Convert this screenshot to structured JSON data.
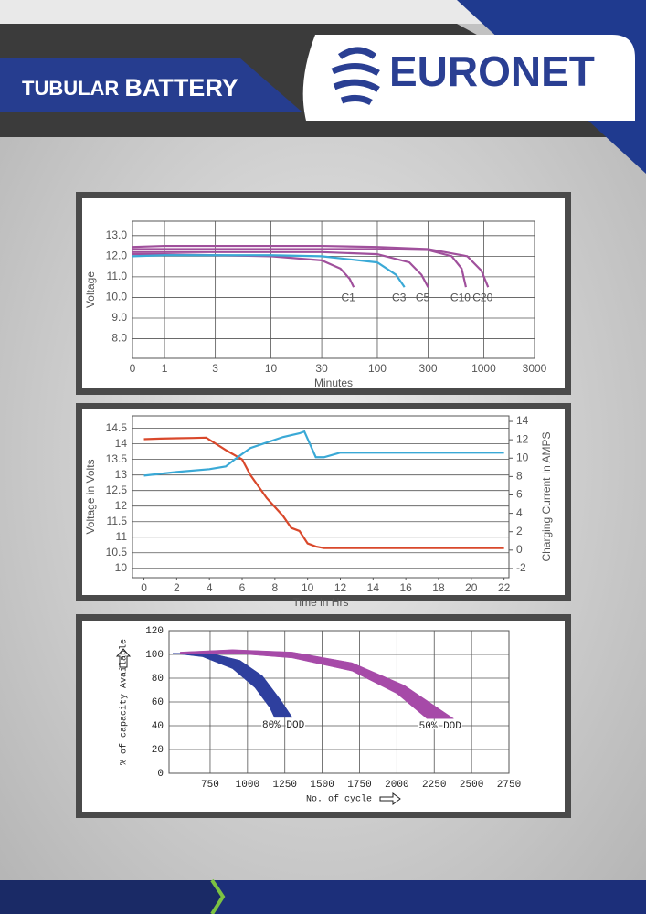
{
  "header": {
    "title_light": "TUBULAR",
    "title_bold": "BATTERY",
    "brand": "EURONET"
  },
  "chart_data": [
    {
      "type": "line",
      "x_label": "Minutes",
      "y_label": "Voltage",
      "x_scale": "log",
      "xlim": [
        0.5,
        3000
      ],
      "xticks": [
        1,
        3,
        10,
        30,
        100,
        300,
        1000,
        3000
      ],
      "x_origin_label": "0",
      "ylim": [
        7.05,
        13.7
      ],
      "yticks": [
        {
          "value": 8,
          "label": "8.0"
        },
        {
          "value": 9,
          "label": "9.0"
        },
        {
          "value": 10,
          "label": "10.0"
        },
        {
          "value": 11,
          "label": "11.0"
        },
        {
          "value": 12,
          "label": "12.0"
        },
        {
          "value": 13,
          "label": "13.0"
        }
      ],
      "grid": true,
      "series": [
        {
          "name": "C1",
          "color": "#a0509c",
          "x": [
            0.5,
            1,
            3,
            10,
            30,
            45,
            55,
            60
          ],
          "values": [
            12.1,
            12.1,
            12.05,
            12.0,
            11.8,
            11.4,
            10.9,
            10.5
          ]
        },
        {
          "name": "C3",
          "color": "#3aa9d6",
          "x": [
            0.5,
            1,
            3,
            10,
            30,
            100,
            150,
            180
          ],
          "values": [
            12.0,
            12.05,
            12.05,
            12.05,
            12.0,
            11.7,
            11.1,
            10.5
          ]
        },
        {
          "name": "C5",
          "color": "#a0509c",
          "x": [
            0.5,
            1,
            3,
            10,
            30,
            100,
            200,
            260,
            300
          ],
          "values": [
            12.2,
            12.2,
            12.2,
            12.2,
            12.2,
            12.1,
            11.7,
            11.1,
            10.5
          ]
        },
        {
          "name": "C10",
          "color": "#a0509c",
          "x": [
            0.5,
            1,
            3,
            10,
            30,
            100,
            300,
            500,
            620,
            680
          ],
          "values": [
            12.35,
            12.35,
            12.35,
            12.35,
            12.35,
            12.35,
            12.3,
            12.0,
            11.4,
            10.5
          ]
        },
        {
          "name": "C20",
          "color": "#a0509c",
          "x": [
            0.5,
            1,
            3,
            10,
            30,
            100,
            300,
            700,
            950,
            1100
          ],
          "values": [
            12.45,
            12.5,
            12.5,
            12.5,
            12.5,
            12.45,
            12.35,
            12.0,
            11.3,
            10.5
          ]
        }
      ]
    },
    {
      "type": "line",
      "x_label": "Time in Hrs",
      "y_label": "Voltage in Volts",
      "y2_label": "Charging Current In AMPS",
      "xlim": [
        -0.7,
        22.3
      ],
      "xticks": [
        0,
        2,
        4,
        6,
        8,
        10,
        12,
        14,
        16,
        18,
        20,
        22
      ],
      "ylim": [
        9.7,
        14.9
      ],
      "yticks": [
        10,
        10.5,
        11,
        11.5,
        12,
        12.5,
        13,
        13.5,
        14,
        14.5
      ],
      "y2lim": [
        -3,
        14.6
      ],
      "y2ticks": [
        -2,
        0,
        2,
        4,
        6,
        8,
        10,
        12,
        14
      ],
      "grid": true,
      "series": [
        {
          "color": "#d9482b",
          "x": [
            0,
            1,
            2,
            3,
            3.8,
            5,
            6,
            6.5,
            7.5,
            8.5,
            9,
            9.5,
            10,
            10.5,
            11,
            14,
            18,
            22
          ],
          "values": [
            14.15,
            14.17,
            14.18,
            14.19,
            14.2,
            13.8,
            13.5,
            13.0,
            12.26,
            11.68,
            11.3,
            11.2,
            10.8,
            10.7,
            10.65,
            10.65,
            10.65,
            10.65
          ]
        },
        {
          "color": "#3aa9d6",
          "axis": "y2",
          "x": [
            0,
            2,
            4,
            5,
            5.5,
            6.5,
            7.5,
            8.5,
            9.5,
            9.8,
            10.5,
            11,
            12,
            14,
            18,
            22
          ],
          "values": [
            8.1,
            8.5,
            8.8,
            9.1,
            9.8,
            11.1,
            11.7,
            12.3,
            12.7,
            12.9,
            10.1,
            10.1,
            10.6,
            10.6,
            10.6,
            10.6
          ]
        }
      ]
    },
    {
      "type": "area",
      "x_label": "No. of cycle",
      "y_label": "% of capacity Available",
      "xlim": [
        475,
        2750
      ],
      "xticks": [
        750,
        1000,
        1250,
        1500,
        1750,
        2000,
        2250,
        2500,
        2750
      ],
      "ylim": [
        0,
        120
      ],
      "yticks": [
        0,
        20,
        40,
        60,
        80,
        100,
        120
      ],
      "grid": true,
      "series": [
        {
          "name": "80% DOD",
          "color": "#2e3f9e",
          "x_upper": [
            500,
            750,
            950,
            1100,
            1220,
            1300
          ],
          "upper": [
            101,
            101,
            95,
            82,
            62,
            47
          ],
          "x_lower": [
            500,
            700,
            900,
            1050,
            1150,
            1180
          ],
          "lower": [
            101,
            98,
            88,
            72,
            55,
            47
          ]
        },
        {
          "name": "50% DOD",
          "color": "#a64aa8",
          "x_upper": [
            550,
            900,
            1300,
            1700,
            2050,
            2380
          ],
          "upper": [
            102,
            104,
            102,
            93,
            74,
            46
          ],
          "x_lower": [
            550,
            900,
            1300,
            1700,
            2000,
            2200
          ],
          "lower": [
            101,
            101,
            97,
            86,
            67,
            46
          ]
        }
      ]
    }
  ]
}
